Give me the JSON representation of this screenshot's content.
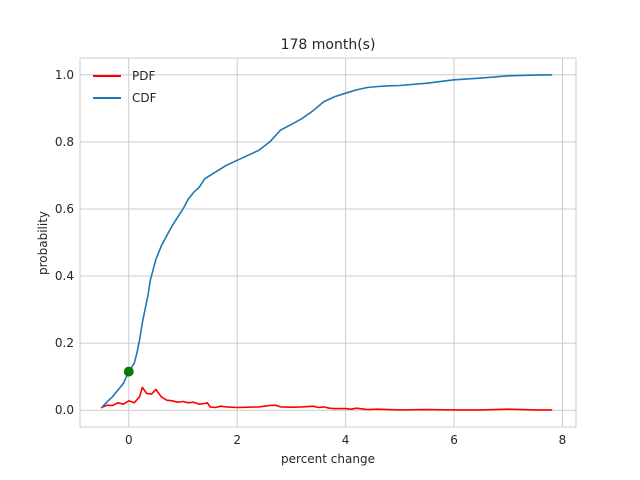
{
  "chart_data": {
    "type": "line",
    "title": "178 month(s)",
    "xlabel": "percent change",
    "ylabel": "probability",
    "xlim": [
      -0.9,
      8.25
    ],
    "ylim": [
      -0.05,
      1.05
    ],
    "xticks": [
      0,
      2,
      4,
      6,
      8
    ],
    "yticks": [
      0.0,
      0.2,
      0.4,
      0.6,
      0.8,
      1.0
    ],
    "xtick_labels": [
      "0",
      "2",
      "4",
      "6",
      "8"
    ],
    "ytick_labels": [
      "0.0",
      "0.2",
      "0.4",
      "0.6",
      "0.8",
      "1.0"
    ],
    "grid": true,
    "legend_position": "top-left",
    "series": [
      {
        "name": "PDF",
        "color": "#ff0000",
        "x": [
          -0.5,
          -0.4,
          -0.3,
          -0.2,
          -0.1,
          0.0,
          0.1,
          0.2,
          0.25,
          0.33,
          0.42,
          0.5,
          0.6,
          0.7,
          0.8,
          0.9,
          1.0,
          1.1,
          1.2,
          1.3,
          1.4,
          1.45,
          1.5,
          1.6,
          1.7,
          1.8,
          2.0,
          2.2,
          2.4,
          2.5,
          2.6,
          2.7,
          2.8,
          3.0,
          3.2,
          3.4,
          3.5,
          3.6,
          3.7,
          3.8,
          4.0,
          4.1,
          4.2,
          4.4,
          4.6,
          4.8,
          5.0,
          5.5,
          6.0,
          6.5,
          7.0,
          7.5,
          7.8
        ],
        "y": [
          0.008,
          0.015,
          0.014,
          0.022,
          0.018,
          0.028,
          0.022,
          0.04,
          0.068,
          0.05,
          0.048,
          0.062,
          0.04,
          0.03,
          0.028,
          0.024,
          0.026,
          0.022,
          0.024,
          0.018,
          0.02,
          0.022,
          0.01,
          0.008,
          0.012,
          0.01,
          0.008,
          0.009,
          0.01,
          0.012,
          0.014,
          0.015,
          0.01,
          0.009,
          0.01,
          0.012,
          0.008,
          0.01,
          0.006,
          0.005,
          0.005,
          0.003,
          0.006,
          0.002,
          0.003,
          0.002,
          0.001,
          0.002,
          0.001,
          0.001,
          0.003,
          0.001,
          0.001
        ]
      },
      {
        "name": "CDF",
        "color": "#1f77b4",
        "x": [
          -0.5,
          -0.4,
          -0.3,
          -0.2,
          -0.1,
          0.0,
          0.1,
          0.15,
          0.2,
          0.25,
          0.3,
          0.35,
          0.4,
          0.5,
          0.6,
          0.7,
          0.8,
          0.9,
          1.0,
          1.1,
          1.2,
          1.3,
          1.4,
          1.5,
          1.6,
          1.7,
          1.8,
          2.0,
          2.2,
          2.4,
          2.6,
          2.8,
          3.0,
          3.2,
          3.4,
          3.6,
          3.8,
          4.0,
          4.2,
          4.4,
          4.6,
          4.8,
          5.0,
          5.5,
          6.0,
          6.5,
          7.0,
          7.5,
          7.8
        ],
        "y": [
          0.008,
          0.025,
          0.04,
          0.06,
          0.08,
          0.115,
          0.14,
          0.17,
          0.21,
          0.26,
          0.3,
          0.34,
          0.39,
          0.45,
          0.49,
          0.52,
          0.55,
          0.575,
          0.6,
          0.63,
          0.65,
          0.665,
          0.69,
          0.7,
          0.71,
          0.72,
          0.73,
          0.745,
          0.76,
          0.775,
          0.8,
          0.835,
          0.852,
          0.87,
          0.893,
          0.92,
          0.935,
          0.945,
          0.955,
          0.962,
          0.965,
          0.967,
          0.968,
          0.975,
          0.985,
          0.99,
          0.997,
          0.999,
          1.0
        ]
      }
    ],
    "marker": {
      "x": 0.0,
      "y": 0.115,
      "color": "#008000"
    }
  }
}
